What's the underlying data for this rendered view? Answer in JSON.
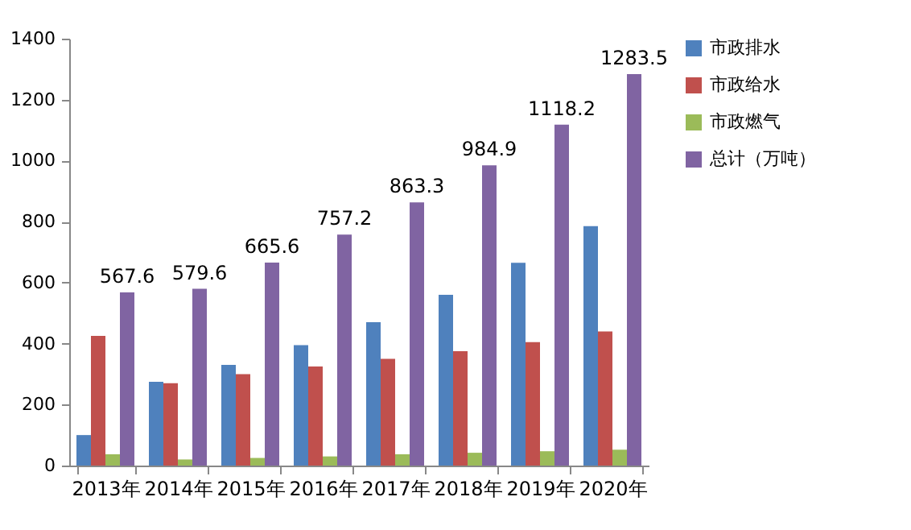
{
  "chart_data": {
    "type": "bar",
    "categories": [
      "2013年",
      "2014年",
      "2015年",
      "2016年",
      "2017年",
      "2018年",
      "2019年",
      "2020年"
    ],
    "series": [
      {
        "name": "市政排水",
        "color": "#4f81bd",
        "values": [
          100,
          275,
          330,
          395,
          470,
          560,
          665,
          785
        ]
      },
      {
        "name": "市政给水",
        "color": "#c0504d",
        "values": [
          425,
          270,
          300,
          325,
          350,
          375,
          405,
          440
        ]
      },
      {
        "name": "市政燃气",
        "color": "#9bbb59",
        "values": [
          37,
          20,
          25,
          30,
          37,
          42,
          47,
          52
        ]
      },
      {
        "name": "总计（万吨）",
        "color": "#8064a2",
        "values": [
          567.6,
          579.6,
          665.6,
          757.2,
          863.3,
          984.9,
          1118.2,
          1283.5
        ],
        "value_labels": [
          "567.6",
          "579.6",
          "665.6",
          "757.2",
          "863.3",
          "984.9",
          "1118.2",
          "1283.5"
        ]
      }
    ],
    "ylim": [
      0,
      1400
    ],
    "yticks": [
      0,
      200,
      400,
      600,
      800,
      1000,
      1200,
      1400
    ],
    "grid": false,
    "legend": "right"
  }
}
